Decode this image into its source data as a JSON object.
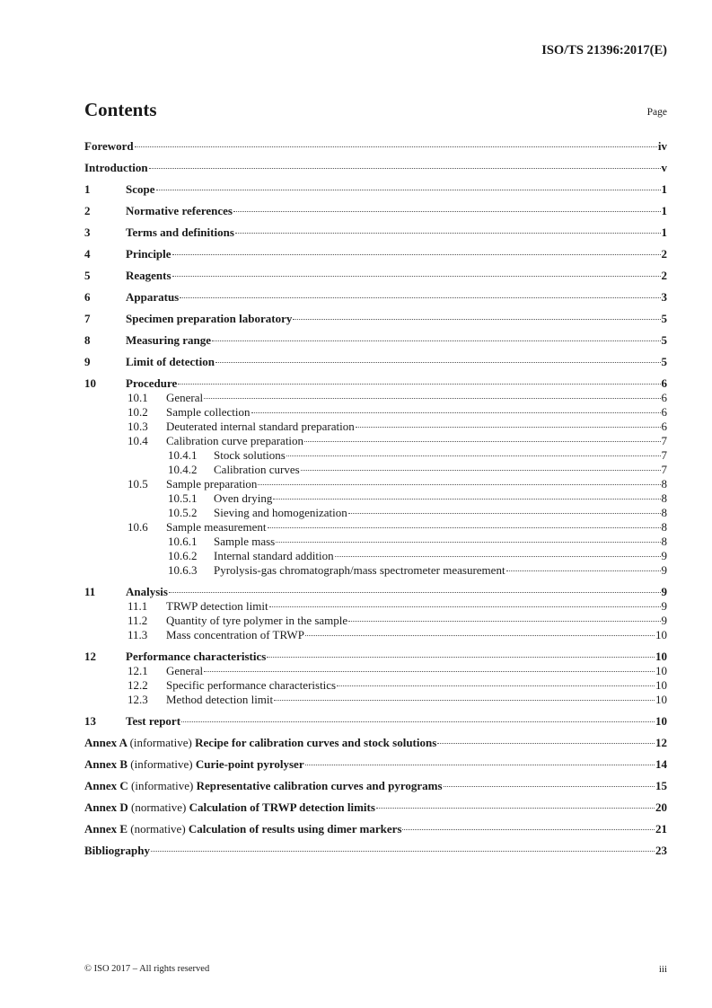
{
  "header": {
    "doc_id": "ISO/TS 21396:2017(E)"
  },
  "title": "Contents",
  "page_label": "Page",
  "entries": [
    {
      "level": 1,
      "num": "",
      "title": "Foreword",
      "page": "iv"
    },
    {
      "level": 1,
      "num": "",
      "title": "Introduction",
      "page": "v"
    },
    {
      "level": 1,
      "num": "1",
      "title": "Scope",
      "page": "1"
    },
    {
      "level": 1,
      "num": "2",
      "title": "Normative references",
      "page": "1"
    },
    {
      "level": 1,
      "num": "3",
      "title": "Terms and definitions",
      "page": "1"
    },
    {
      "level": 1,
      "num": "4",
      "title": "Principle",
      "page": "2"
    },
    {
      "level": 1,
      "num": "5",
      "title": "Reagents",
      "page": "2"
    },
    {
      "level": 1,
      "num": "6",
      "title": "Apparatus",
      "page": "3"
    },
    {
      "level": 1,
      "num": "7",
      "title": "Specimen preparation laboratory",
      "page": "5"
    },
    {
      "level": 1,
      "num": "8",
      "title": "Measuring range",
      "page": "5"
    },
    {
      "level": 1,
      "num": "9",
      "title": "Limit of detection",
      "page": "5"
    },
    {
      "level": 1,
      "num": "10",
      "title": "Procedure",
      "page": "6"
    },
    {
      "level": 2,
      "num": "10.1",
      "title": "General",
      "page": "6"
    },
    {
      "level": 2,
      "num": "10.2",
      "title": "Sample collection",
      "page": "6"
    },
    {
      "level": 2,
      "num": "10.3",
      "title": "Deuterated internal standard preparation",
      "page": "6"
    },
    {
      "level": 2,
      "num": "10.4",
      "title": "Calibration curve preparation",
      "page": "7"
    },
    {
      "level": 3,
      "num": "10.4.1",
      "title": "Stock solutions",
      "page": "7"
    },
    {
      "level": 3,
      "num": "10.4.2",
      "title": "Calibration curves",
      "page": "7"
    },
    {
      "level": 2,
      "num": "10.5",
      "title": "Sample preparation",
      "page": "8"
    },
    {
      "level": 3,
      "num": "10.5.1",
      "title": "Oven drying",
      "page": "8"
    },
    {
      "level": 3,
      "num": "10.5.2",
      "title": "Sieving and homogenization",
      "page": "8"
    },
    {
      "level": 2,
      "num": "10.6",
      "title": "Sample measurement",
      "page": "8"
    },
    {
      "level": 3,
      "num": "10.6.1",
      "title": "Sample mass",
      "page": "8"
    },
    {
      "level": 3,
      "num": "10.6.2",
      "title": "Internal standard addition",
      "page": "9"
    },
    {
      "level": 3,
      "num": "10.6.3",
      "title": "Pyrolysis-gas chromatograph/mass spectrometer measurement",
      "page": "9"
    },
    {
      "level": 1,
      "num": "11",
      "title": "Analysis",
      "page": "9"
    },
    {
      "level": 2,
      "num": "11.1",
      "title": "TRWP detection limit",
      "page": "9"
    },
    {
      "level": 2,
      "num": "11.2",
      "title": "Quantity of tyre polymer in the sample",
      "page": "9"
    },
    {
      "level": 2,
      "num": "11.3",
      "title": "Mass concentration of TRWP",
      "page": "10"
    },
    {
      "level": 1,
      "num": "12",
      "title": "Performance characteristics",
      "page": "10"
    },
    {
      "level": 2,
      "num": "12.1",
      "title": "General",
      "page": "10"
    },
    {
      "level": 2,
      "num": "12.2",
      "title": "Specific performance characteristics",
      "page": "10"
    },
    {
      "level": 2,
      "num": "12.3",
      "title": "Method detection limit",
      "page": "10"
    },
    {
      "level": 1,
      "num": "13",
      "title": "Test report",
      "page": "10"
    },
    {
      "level": 1,
      "annex": "Annex A",
      "kind": "(informative)",
      "title": "Recipe for calibration curves and stock solutions",
      "page": "12"
    },
    {
      "level": 1,
      "annex": "Annex B",
      "kind": "(informative)",
      "title": "Curie-point pyrolyser",
      "page": "14"
    },
    {
      "level": 1,
      "annex": "Annex C",
      "kind": "(informative)",
      "title": "Representative calibration curves and pyrograms",
      "page": "15"
    },
    {
      "level": 1,
      "annex": "Annex D",
      "kind": "(normative)",
      "title": "Calculation of TRWP detection limits",
      "page": "20"
    },
    {
      "level": 1,
      "annex": "Annex E",
      "kind": "(normative)",
      "title": "Calculation of results using dimer markers",
      "page": "21"
    },
    {
      "level": 1,
      "num": "",
      "title": "Bibliography",
      "page": "23"
    }
  ],
  "footer": {
    "copyright": "© ISO 2017 – All rights reserved",
    "page_number": "iii"
  }
}
